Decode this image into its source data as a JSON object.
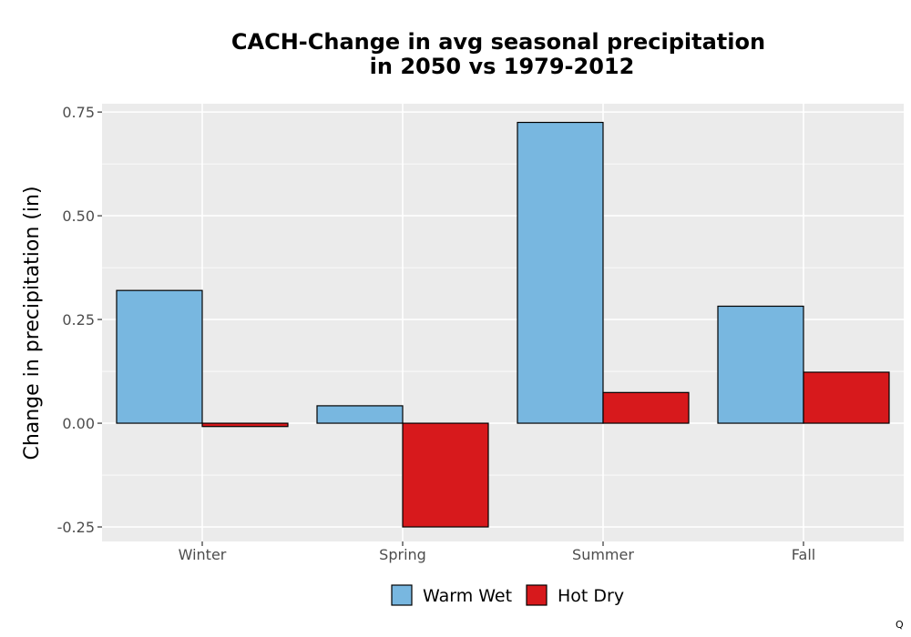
{
  "chart_data": {
    "type": "bar",
    "title_lines": [
      "CACH-Change in avg seasonal precipitation",
      "in 2050 vs 1979-2012"
    ],
    "xlabel": "",
    "ylabel": "Change in precipitation (in)",
    "categories": [
      "Winter",
      "Spring",
      "Summer",
      "Fall"
    ],
    "series": [
      {
        "name": "Warm Wet",
        "color": "#78b7e0",
        "values": [
          0.32,
          0.042,
          0.725,
          0.282
        ]
      },
      {
        "name": "Hot Dry",
        "color": "#d7191c",
        "values": [
          -0.008,
          -0.25,
          0.074,
          0.123
        ]
      }
    ],
    "ylim": [
      -0.285,
      0.77
    ],
    "yticks": [
      -0.25,
      0.0,
      0.25,
      0.5,
      0.75
    ],
    "ytick_labels": [
      "-0.25",
      "0.00",
      "0.25",
      "0.50",
      "0.75"
    ],
    "grid": true,
    "legend_position": "bottom",
    "footnote": "Q"
  }
}
